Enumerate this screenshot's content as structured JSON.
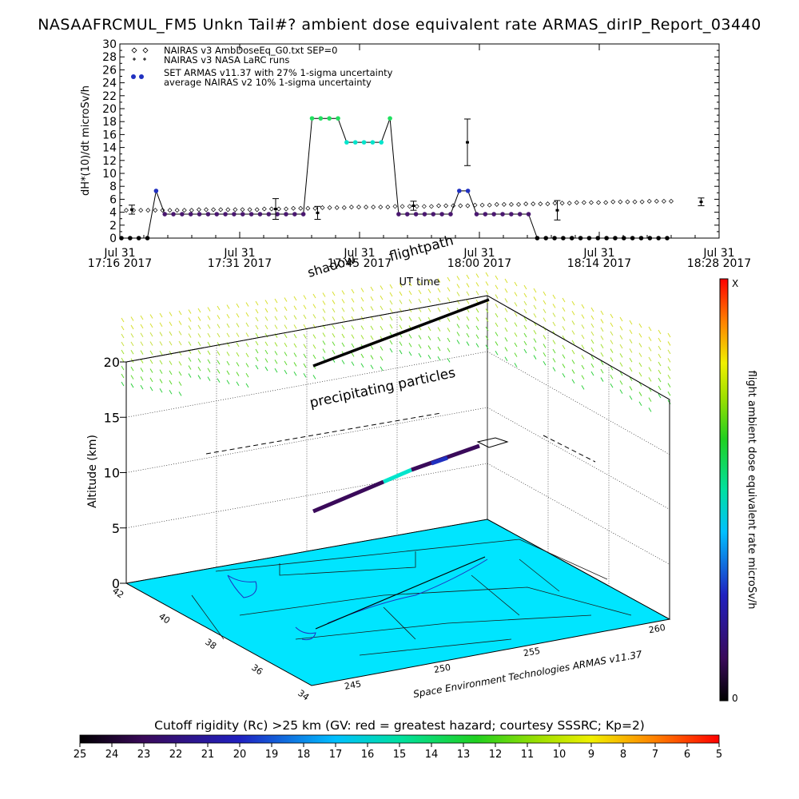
{
  "title": "NASAAFRCMUL_FM5 Unkn Tail#? ambient dose equivalent rate ARMAS_dirIP_Report_03440",
  "chart_data": [
    {
      "type": "line",
      "ylabel": "dH*(10)/dt microSv/h",
      "xlabel": "UT time",
      "ylim": [
        0,
        30
      ],
      "yticks": [
        "0",
        "2",
        "4",
        "6",
        "8",
        "10",
        "12",
        "14",
        "16",
        "18",
        "20",
        "22",
        "24",
        "26",
        "28",
        "30"
      ],
      "xticks": [
        {
          "top": "Jul 31",
          "bottom": "17:16 2017"
        },
        {
          "top": "Jul 31",
          "bottom": "17:31 2017"
        },
        {
          "top": "Jul 31",
          "bottom": "17:45 2017"
        },
        {
          "top": "Jul 31",
          "bottom": "18:00 2017"
        },
        {
          "top": "Jul 31",
          "bottom": "18:14 2017"
        },
        {
          "top": "Jul 31",
          "bottom": "18:28 2017"
        }
      ],
      "legend": [
        "NAIRAS v3 AmbDoseEq_G0.txt SEP=0",
        "NAIRAS v3 NASA LaRC runs",
        "SET ARMAS v11.37 with 27% 1-sigma uncertainty",
        "average NAIRAS v2 10% 1-sigma uncertainty"
      ],
      "legend_position": "top-left",
      "series": [
        {
          "name": "SET ARMAS v11.37 with 27% 1-sigma uncertainty",
          "values": [
            0,
            0,
            0,
            0,
            7.3,
            3.7,
            3.7,
            3.7,
            3.7,
            3.7,
            3.7,
            3.7,
            3.7,
            3.7,
            3.7,
            3.7,
            3.7,
            3.7,
            3.7,
            3.7,
            3.7,
            3.7,
            18.5,
            18.5,
            18.5,
            18.5,
            14.8,
            14.8,
            14.8,
            14.8,
            14.8,
            18.5,
            3.7,
            3.7,
            3.7,
            3.7,
            3.7,
            3.7,
            3.7,
            7.3,
            7.3,
            3.7,
            3.7,
            3.7,
            3.7,
            3.7,
            3.7,
            3.7,
            0,
            0,
            0,
            0,
            0,
            0,
            0,
            0,
            0,
            0,
            0,
            0,
            0,
            0,
            0,
            0
          ]
        },
        {
          "name": "NAIRAS v3 AmbDoseEq_G0.txt SEP=0",
          "values": [
            4.3,
            4.3,
            4.3,
            4.3,
            4.3,
            4.3,
            4.3,
            4.3,
            4.3,
            4.3,
            4.4,
            4.4,
            4.4,
            4.4,
            4.4,
            4.4,
            4.4,
            4.4,
            4.4,
            4.5,
            4.5,
            4.5,
            4.5,
            4.6,
            4.6,
            4.6,
            4.6,
            4.7,
            4.7,
            4.7,
            4.7,
            4.8,
            4.8,
            4.8,
            4.8,
            4.8,
            4.8,
            4.9,
            4.9,
            4.9,
            4.9,
            4.9,
            4.9,
            5.0,
            5.0,
            5.0,
            5.0,
            5.0,
            5.1,
            5.1,
            5.1,
            5.2,
            5.2,
            5.2,
            5.2,
            5.3,
            5.3,
            5.3,
            5.3,
            5.4,
            5.4,
            5.4,
            5.5,
            5.5,
            5.5,
            5.5,
            5.5,
            5.6,
            5.6,
            5.6,
            5.6,
            5.6,
            5.7,
            5.7,
            5.7,
            5.7
          ]
        },
        {
          "name": "average NAIRAS v2 10% 1-sigma uncertainty",
          "errorbars": [
            {
              "x": 0.02,
              "y": 4.4,
              "err": 0.7
            },
            {
              "x": 0.26,
              "y": 4.5,
              "err": 1.6
            },
            {
              "x": 0.33,
              "y": 3.9,
              "err": 1.0
            },
            {
              "x": 0.49,
              "y": 5.0,
              "err": 0.7
            },
            {
              "x": 0.58,
              "y": 14.8,
              "err": 3.6
            },
            {
              "x": 0.73,
              "y": 4.3,
              "err": 1.5
            },
            {
              "x": 0.97,
              "y": 5.6,
              "err": 0.6
            }
          ]
        }
      ]
    },
    {
      "type": "scatter",
      "zlabel": "Altitude (km)",
      "zticks": [
        "0",
        "5",
        "10",
        "15",
        "20"
      ],
      "lat_ticks": [
        "42",
        "40",
        "38",
        "36",
        "34"
      ],
      "lon_ticks": [
        "245",
        "250",
        "255",
        "260"
      ],
      "annotations": [
        "shadow",
        "flightpath",
        "precipitating particles"
      ],
      "credit": "Space Environment Technologies ARMAS v11.37",
      "colorbar": {
        "label": "flight ambient dose equivalent rate microSv/h",
        "top_label": "X",
        "bottom_label": "0"
      }
    },
    {
      "type": "heatmap",
      "title": "Cutoff rigidity (Rc) >25 km (GV: red = greatest hazard; courtesy SSSRC; Kp=2)",
      "ticks": [
        "25",
        "24",
        "23",
        "22",
        "21",
        "20",
        "19",
        "18",
        "17",
        "16",
        "15",
        "14",
        "13",
        "12",
        "11",
        "10",
        "9",
        "8",
        "7",
        "6",
        "5"
      ]
    }
  ]
}
